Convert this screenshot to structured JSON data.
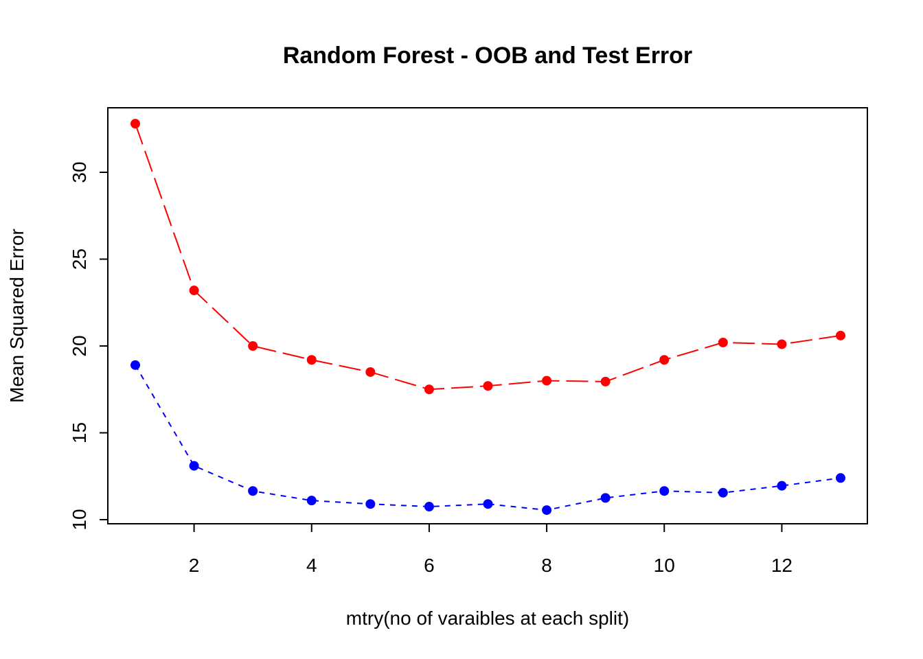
{
  "chart_data": {
    "type": "line",
    "title": "Random Forest - OOB and Test Error",
    "xlabel": "mtry(no of varaibles at each split)",
    "ylabel": "Mean Squared Error",
    "x": [
      1,
      2,
      3,
      4,
      5,
      6,
      7,
      8,
      9,
      10,
      11,
      12,
      13
    ],
    "xlim": [
      0.5,
      13.5
    ],
    "ylim": [
      10,
      33
    ],
    "x_ticks": [
      "2",
      "4",
      "6",
      "8",
      "10",
      "12"
    ],
    "y_ticks": [
      "10",
      "15",
      "20",
      "25",
      "30"
    ],
    "grid": false,
    "legend": "none",
    "series": [
      {
        "color": "#ff0000",
        "line_style": "dashed-long",
        "values": [
          32.8,
          23.2,
          20.0,
          19.2,
          18.5,
          17.5,
          17.7,
          18.0,
          17.95,
          19.2,
          20.2,
          20.1,
          20.6
        ]
      },
      {
        "color": "#0000ff",
        "line_style": "dashed",
        "values": [
          18.9,
          13.1,
          11.65,
          11.1,
          10.9,
          10.75,
          10.9,
          10.55,
          11.25,
          11.65,
          11.55,
          11.95,
          12.4
        ]
      }
    ]
  }
}
